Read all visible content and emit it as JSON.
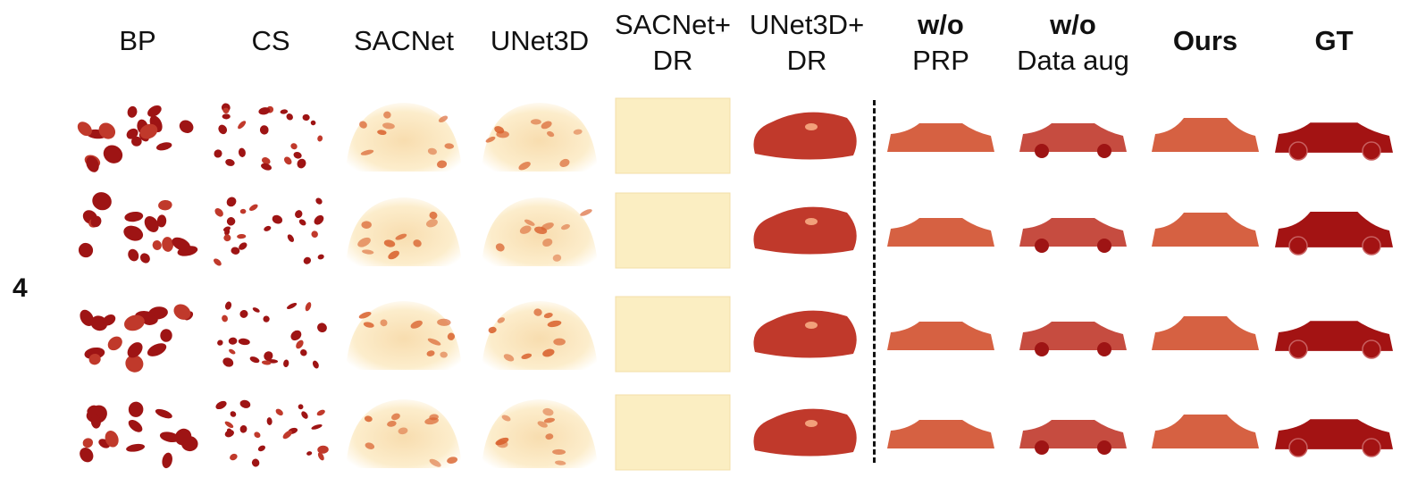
{
  "columns": [
    {
      "id": "bp",
      "lines": [
        "BP"
      ],
      "bold": false
    },
    {
      "id": "cs",
      "lines": [
        "CS"
      ],
      "bold": false
    },
    {
      "id": "sacnet",
      "lines": [
        "SACNet"
      ],
      "bold": false
    },
    {
      "id": "unet3d",
      "lines": [
        "UNet3D"
      ],
      "bold": false
    },
    {
      "id": "sacnet-dr",
      "lines": [
        "SACNet+",
        "DR"
      ],
      "bold": false
    },
    {
      "id": "unet3d-dr",
      "lines": [
        "UNet3D+",
        "DR"
      ],
      "bold": false
    },
    {
      "id": "wo-prp",
      "lines": [
        "w/o",
        "PRP"
      ],
      "bold": true,
      "second_normal": true
    },
    {
      "id": "wo-aug",
      "lines": [
        "w/o",
        "Data aug"
      ],
      "bold": true,
      "second_normal": true
    },
    {
      "id": "ours",
      "lines": [
        "Ours"
      ],
      "bold": true
    },
    {
      "id": "gt",
      "lines": [
        "GT"
      ],
      "bold": true
    }
  ],
  "row_label": "4",
  "rows": 4,
  "colors": {
    "dark_red": "#9e1414",
    "mid_red": "#c0392b",
    "orange": "#d9632f",
    "pale_yellow": "#fbeec2",
    "light_yellow": "#fdf3d3",
    "divider": "#111111"
  },
  "cell_kinds": [
    "blobs",
    "sparse-blobs",
    "faint-cloud",
    "faint-cloud",
    "flat-panel",
    "blob-car",
    "soft-car",
    "detailed-car",
    "soft-car",
    "gt-car"
  ]
}
